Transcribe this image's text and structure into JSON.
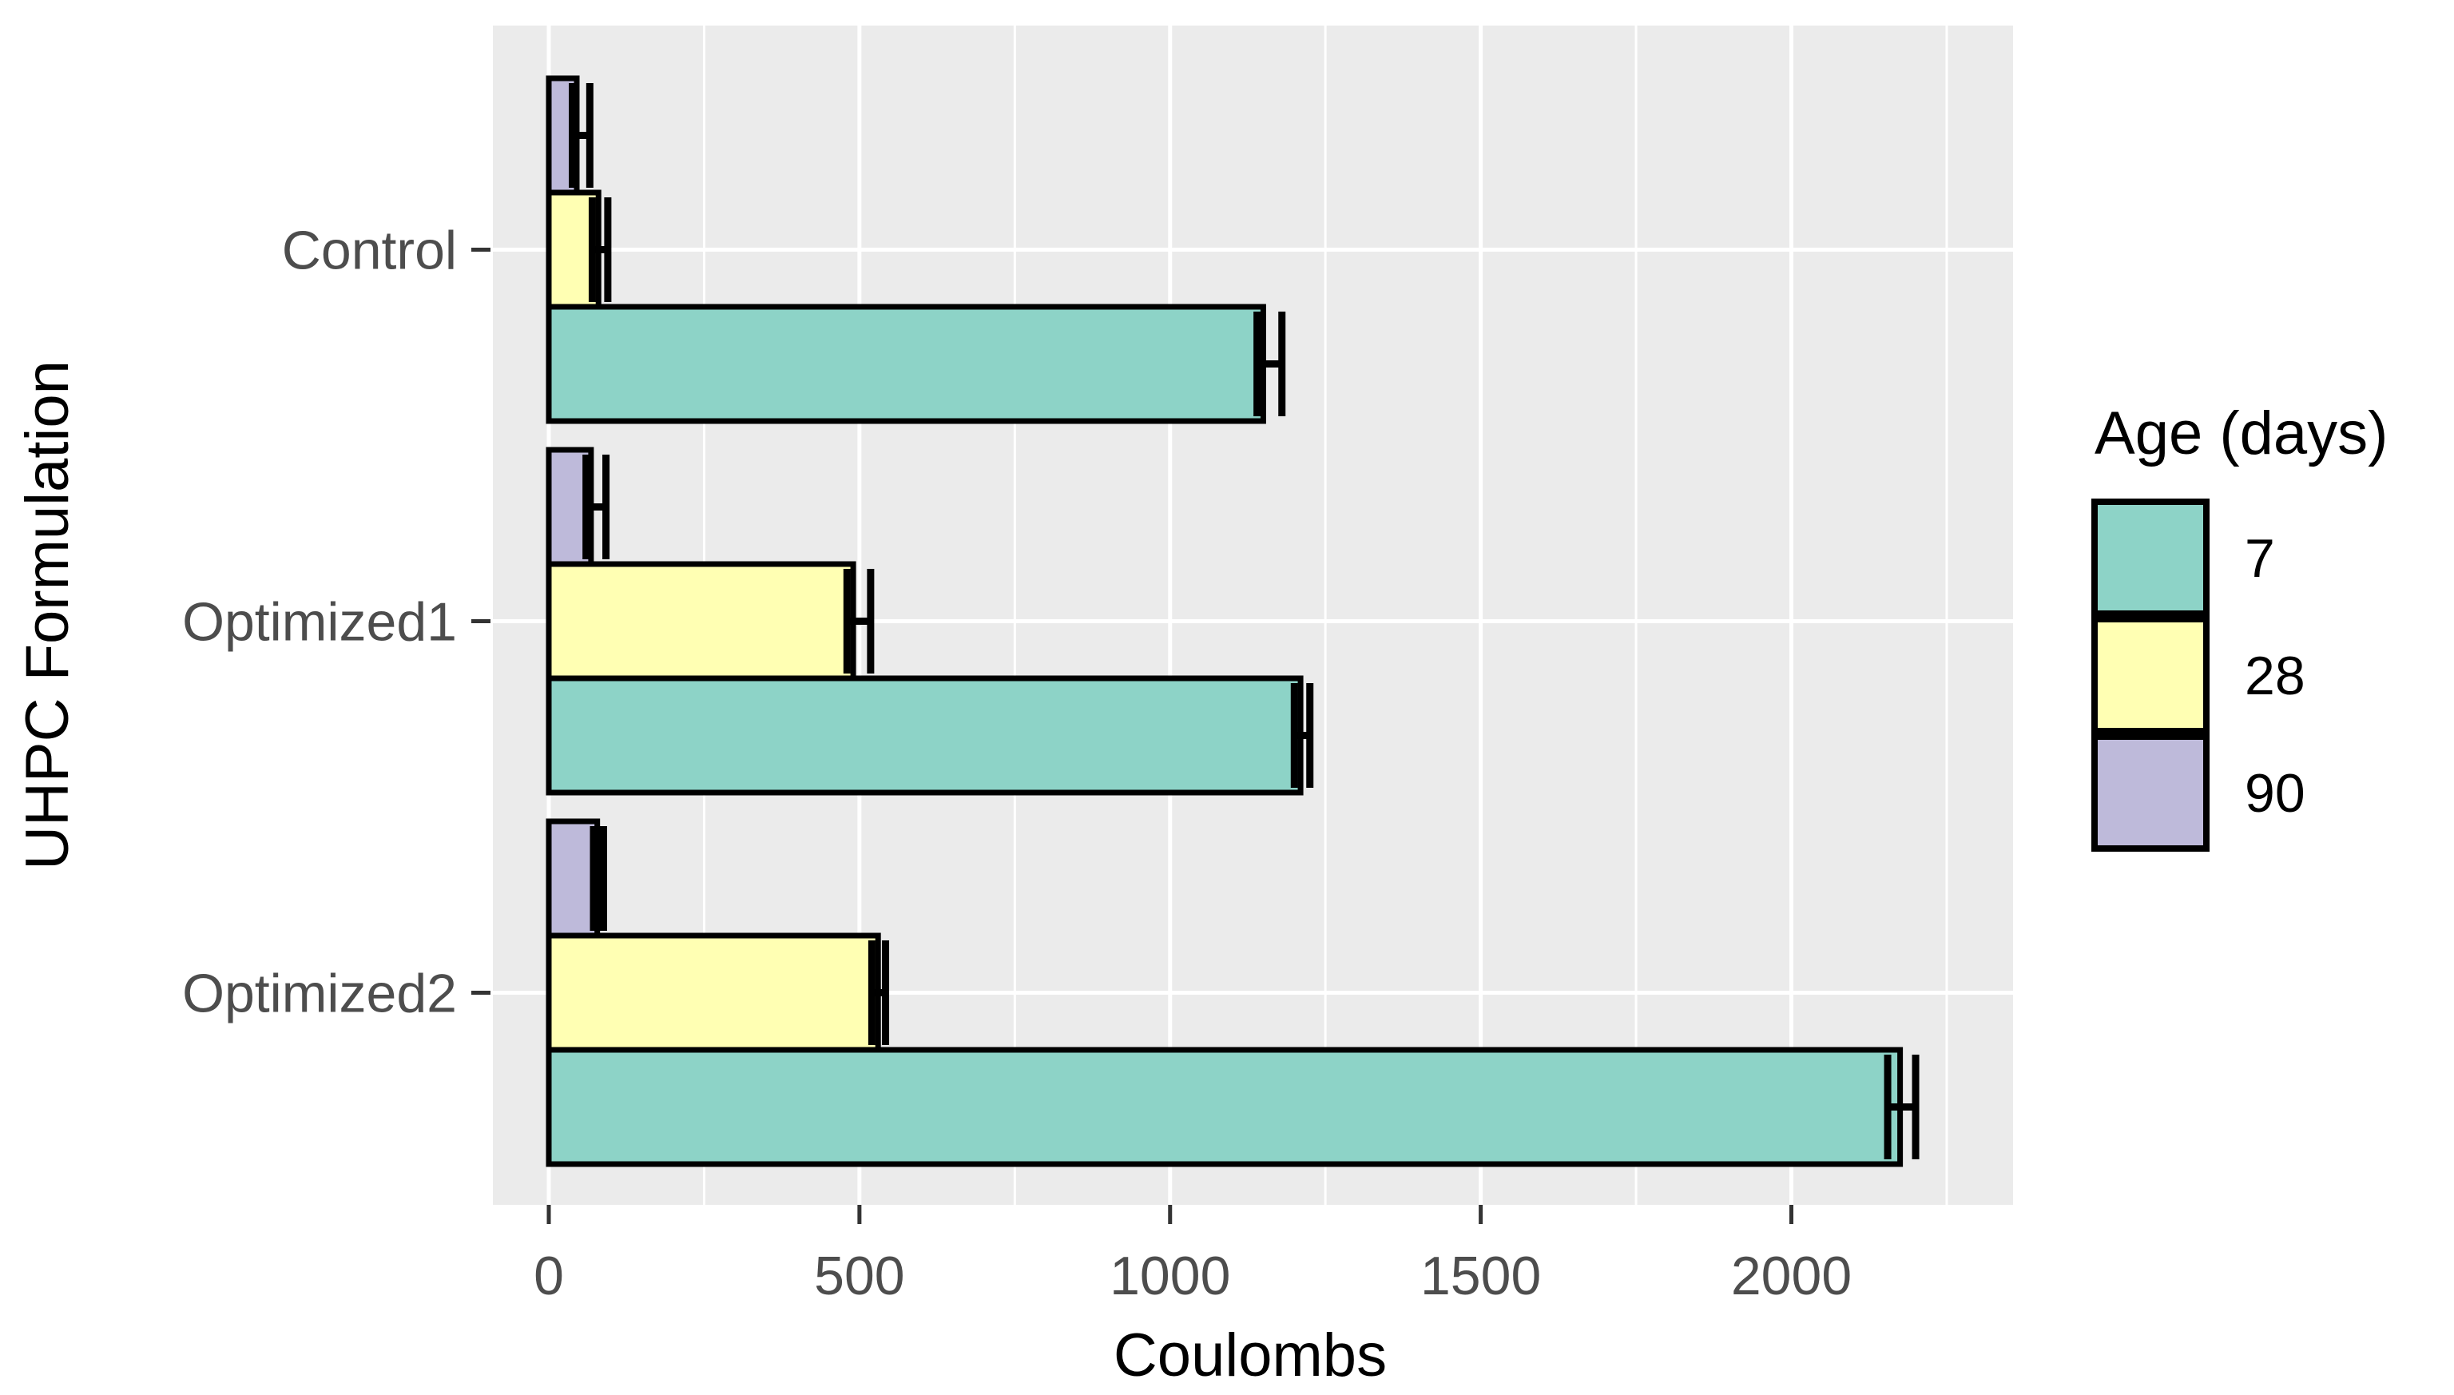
{
  "figure": {
    "xlabel": "Coulombs",
    "ylabel": "UHPC Formulation",
    "legend_title": "Age (days)"
  },
  "chart_data": {
    "type": "bar",
    "orientation": "horizontal",
    "title": "",
    "xlabel": "Coulombs",
    "ylabel": "UHPC Formulation",
    "categories": [
      "Control",
      "Optimized1",
      "Optimized2"
    ],
    "x_ticks": [
      0,
      500,
      1000,
      1500,
      2000
    ],
    "x_minor_ticks": [
      250,
      750,
      1250,
      1750,
      2250
    ],
    "xlim": [
      -90,
      2360
    ],
    "grid": true,
    "panel_background": "#EBEBEB",
    "grid_color": "#FFFFFF",
    "tick_label_color": "#4D4D4D",
    "tick_mark_color": "#333333",
    "axis_title_color": "#000000",
    "bar_outline_color": "#000000",
    "dodge_order_top_to_bottom": [
      "90",
      "28",
      "7"
    ],
    "legend": {
      "title": "Age (days)",
      "position": "right",
      "entries": [
        {
          "label": "7",
          "color": "#8DD3C7"
        },
        {
          "label": "28",
          "color": "#FFFFB3"
        },
        {
          "label": "90",
          "color": "#BEBADA"
        }
      ]
    },
    "series": [
      {
        "name": "7",
        "color": "#8DD3C7",
        "values": [
          1150,
          1210,
          2175
        ],
        "error_low": [
          1140,
          1200,
          2155
        ],
        "error_high": [
          1180,
          1225,
          2200
        ]
      },
      {
        "name": "28",
        "color": "#FFFFB3",
        "values": [
          80,
          490,
          530
        ],
        "error_low": [
          70,
          480,
          520
        ],
        "error_high": [
          95,
          518,
          542
        ]
      },
      {
        "name": "90",
        "color": "#BEBADA",
        "values": [
          45,
          68,
          78
        ],
        "error_low": [
          38,
          60,
          72
        ],
        "error_high": [
          66,
          92,
          88
        ]
      }
    ]
  }
}
